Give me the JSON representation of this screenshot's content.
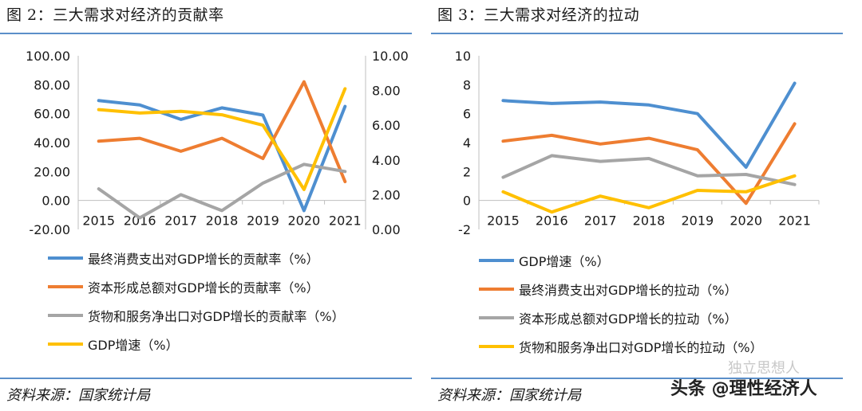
{
  "left": {
    "title": "图 2：三大需求对经济的贡献率",
    "source": "资料来源：国家统计局",
    "chart_data": {
      "type": "line",
      "categories": [
        "2015",
        "2016",
        "2017",
        "2018",
        "2019",
        "2020",
        "2021"
      ],
      "left_axis": {
        "ylim": [
          -20,
          100
        ],
        "ticks": [
          "100.00",
          "80.00",
          "60.00",
          "40.00",
          "20.00",
          "0.00",
          "-20.00"
        ]
      },
      "right_axis": {
        "ylim": [
          0,
          10
        ],
        "ticks": [
          "10.00",
          "8.00",
          "6.00",
          "4.00",
          "2.00",
          "0.00"
        ]
      },
      "series": [
        {
          "name": "最终消费支出对GDP增长的贡献率（%）",
          "axis": "left",
          "color": "#4e8fd0",
          "values": [
            69,
            66,
            56,
            64,
            59,
            -7,
            65
          ]
        },
        {
          "name": "资本形成总额对GDP增长的贡献率（%）",
          "axis": "left",
          "color": "#ee7d31",
          "values": [
            41,
            43,
            34,
            43,
            29,
            82,
            13
          ]
        },
        {
          "name": "货物和服务净出口对GDP增长的贡献率（%）",
          "axis": "left",
          "color": "#a5a5a5",
          "values": [
            8,
            -12,
            4,
            -7,
            12,
            25,
            20
          ]
        },
        {
          "name": "GDP增速（%）",
          "axis": "right",
          "color": "#ffc000",
          "values": [
            6.9,
            6.7,
            6.8,
            6.6,
            6.0,
            2.3,
            8.1
          ]
        }
      ]
    }
  },
  "right": {
    "title": "图 3：三大需求对经济的拉动",
    "source": "资料来源：国家统计局",
    "chart_data": {
      "type": "line",
      "categories": [
        "2015",
        "2016",
        "2017",
        "2018",
        "2019",
        "2020",
        "2021"
      ],
      "left_axis": {
        "ylim": [
          -2,
          10
        ],
        "ticks": [
          "10",
          "8",
          "6",
          "4",
          "2",
          "0",
          "-2"
        ]
      },
      "series": [
        {
          "name": "GDP增速（%）",
          "color": "#4e8fd0",
          "values": [
            6.9,
            6.7,
            6.8,
            6.6,
            6.0,
            2.3,
            8.1
          ]
        },
        {
          "name": "最终消费支出对GDP增长的拉动（%）",
          "color": "#ee7d31",
          "values": [
            4.1,
            4.5,
            3.9,
            4.3,
            3.5,
            -0.2,
            5.3
          ]
        },
        {
          "name": "资本形成总额对GDP增长的拉动（%）",
          "color": "#a5a5a5",
          "values": [
            1.6,
            3.1,
            2.7,
            2.9,
            1.7,
            1.8,
            1.1
          ]
        },
        {
          "name": "货物和服务净出口对GDP增长的拉动（%）",
          "color": "#ffc000",
          "values": [
            0.6,
            -0.8,
            0.3,
            -0.5,
            0.7,
            0.6,
            1.7
          ]
        }
      ]
    }
  },
  "watermark": {
    "text": "头条 @理性经济人",
    "faint": "独立思想人"
  }
}
